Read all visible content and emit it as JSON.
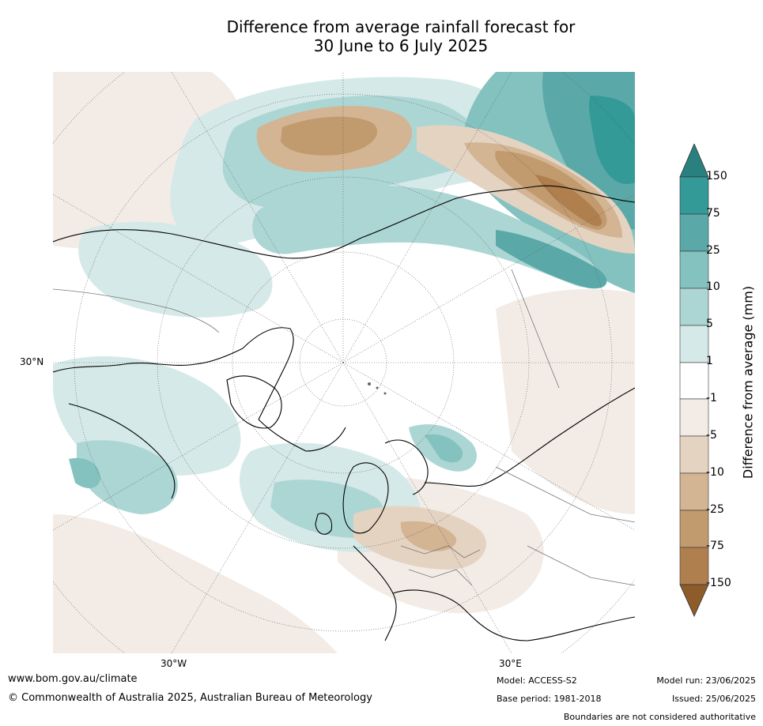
{
  "title_line1": "Difference from average rainfall forecast for",
  "title_line2": "30 June to 6 July 2025",
  "map": {
    "lat_label": "30°N",
    "lon_west_label": "30°W",
    "lon_east_label": "30°E",
    "colors": {
      "wet_150": "#2a7f7f",
      "wet_75": "#339a98",
      "wet_25": "#5aa9a8",
      "wet_10": "#84c2c0",
      "wet_5": "#acd6d4",
      "wet_1": "#d5e9e8",
      "neutral": "#ffffff",
      "dry_1": "#f3ece6",
      "dry_5": "#e5d3c2",
      "dry_10": "#d3b493",
      "dry_25": "#c19a6e",
      "dry_75": "#b07f4e",
      "dry_150": "#8d5c2a"
    }
  },
  "colorbar": {
    "title": "Difference from average (mm)",
    "ticks": [
      "150",
      "75",
      "25",
      "10",
      "5",
      "1",
      "-1",
      "-5",
      "-10",
      "-25",
      "-75",
      "-150"
    ]
  },
  "footer": {
    "url": "www.bom.gov.au/climate",
    "copyright": "© Commonwealth of Australia 2025, Australian Bureau of Meteorology",
    "model": "Model: ACCESS-S2",
    "base_period": "Base period: 1981-2018",
    "model_run": "Model run: 23/06/2025",
    "issued": "Issued: 25/06/2025",
    "disclaimer": "Boundaries are not considered authoritative"
  }
}
